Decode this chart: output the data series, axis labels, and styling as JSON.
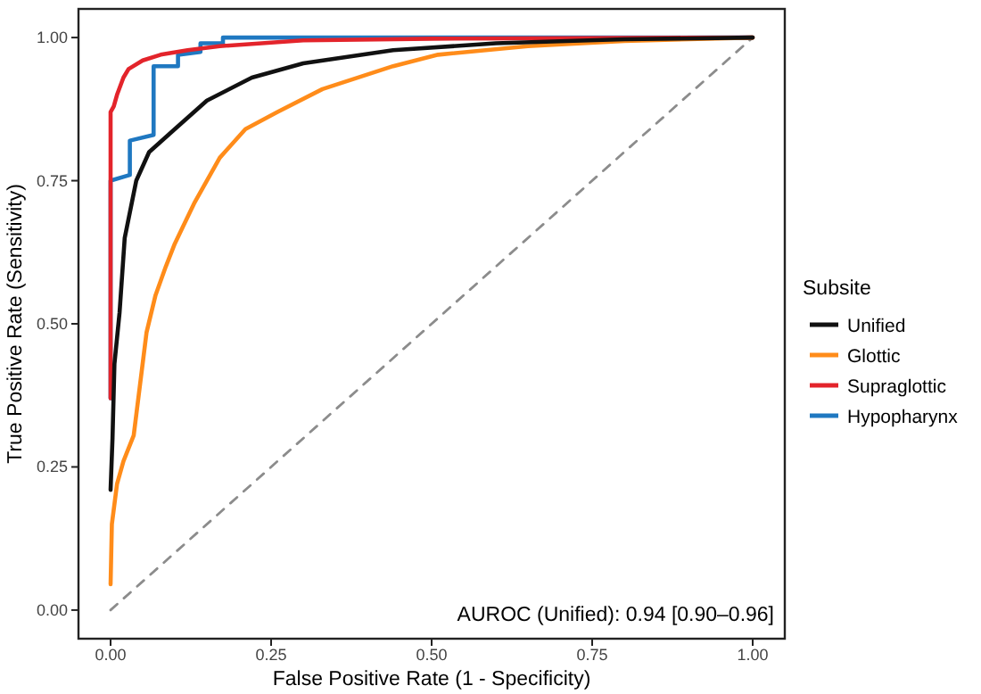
{
  "chart_data": {
    "type": "line",
    "xlabel": "False Positive Rate (1 - Specificity)",
    "ylabel": "True Positive Rate (Sensitivity)",
    "legend_title": "Subsite",
    "legend": "right",
    "grid": false,
    "line_style": "solid",
    "marker": "none",
    "xlim": [
      -0.05,
      1.05
    ],
    "ylim": [
      -0.05,
      1.05
    ],
    "xticks": [
      {
        "value": 0,
        "label": "0.00"
      },
      {
        "value": 0.25,
        "label": "0.25"
      },
      {
        "value": 0.5,
        "label": "0.50"
      },
      {
        "value": 0.75,
        "label": "0.75"
      },
      {
        "value": 1,
        "label": "1.00"
      }
    ],
    "yticks": [
      {
        "value": 0,
        "label": "0.00"
      },
      {
        "value": 0.25,
        "label": "0.25"
      },
      {
        "value": 0.5,
        "label": "0.50"
      },
      {
        "value": 0.75,
        "label": "0.75"
      },
      {
        "value": 1,
        "label": "1.00"
      }
    ],
    "annotations": [
      "AUROC (Unified): 0.94 [0.90–0.96]"
    ],
    "series": [
      {
        "color": "#8c8c8c",
        "line_style": "dashed",
        "x": [
          0,
          1
        ],
        "values": [
          0,
          1
        ]
      },
      {
        "name": "Unified",
        "color": "#111111",
        "x": [
          0,
          0.003,
          0.006,
          0.014,
          0.022,
          0.04,
          0.06,
          0.1,
          0.15,
          0.22,
          0.3,
          0.44,
          0.6,
          0.8,
          1
        ],
        "values": [
          0.21,
          0.3,
          0.43,
          0.52,
          0.65,
          0.75,
          0.8,
          0.84,
          0.89,
          0.93,
          0.955,
          0.978,
          0.99,
          0.997,
          1
        ]
      },
      {
        "name": "Glottic",
        "color": "#ff8c1a",
        "x": [
          0,
          0.002,
          0.01,
          0.02,
          0.036,
          0.056,
          0.07,
          0.086,
          0.1,
          0.13,
          0.17,
          0.21,
          0.26,
          0.33,
          0.44,
          0.51,
          0.65,
          0.8,
          1
        ],
        "values": [
          0.045,
          0.15,
          0.22,
          0.26,
          0.305,
          0.485,
          0.55,
          0.6,
          0.64,
          0.71,
          0.79,
          0.84,
          0.87,
          0.91,
          0.95,
          0.97,
          0.985,
          0.994,
          1
        ]
      },
      {
        "name": "Supraglottic",
        "color": "#e3242b",
        "x": [
          0,
          0,
          0.005,
          0.01,
          0.02,
          0.028,
          0.05,
          0.078,
          0.12,
          0.17,
          0.3,
          0.5,
          1
        ],
        "values": [
          0.37,
          0.87,
          0.88,
          0.9,
          0.93,
          0.945,
          0.96,
          0.97,
          0.978,
          0.985,
          0.995,
          0.998,
          1
        ]
      },
      {
        "name": "Hypopharynx",
        "color": "#1f78c1",
        "x": [
          0,
          0,
          0.03,
          0.03,
          0.067,
          0.067,
          0.105,
          0.105,
          0.14,
          0.14,
          0.175,
          0.175,
          1
        ],
        "values": [
          0.37,
          0.75,
          0.76,
          0.82,
          0.83,
          0.95,
          0.95,
          0.97,
          0.975,
          0.99,
          0.99,
          1,
          1
        ]
      }
    ]
  }
}
